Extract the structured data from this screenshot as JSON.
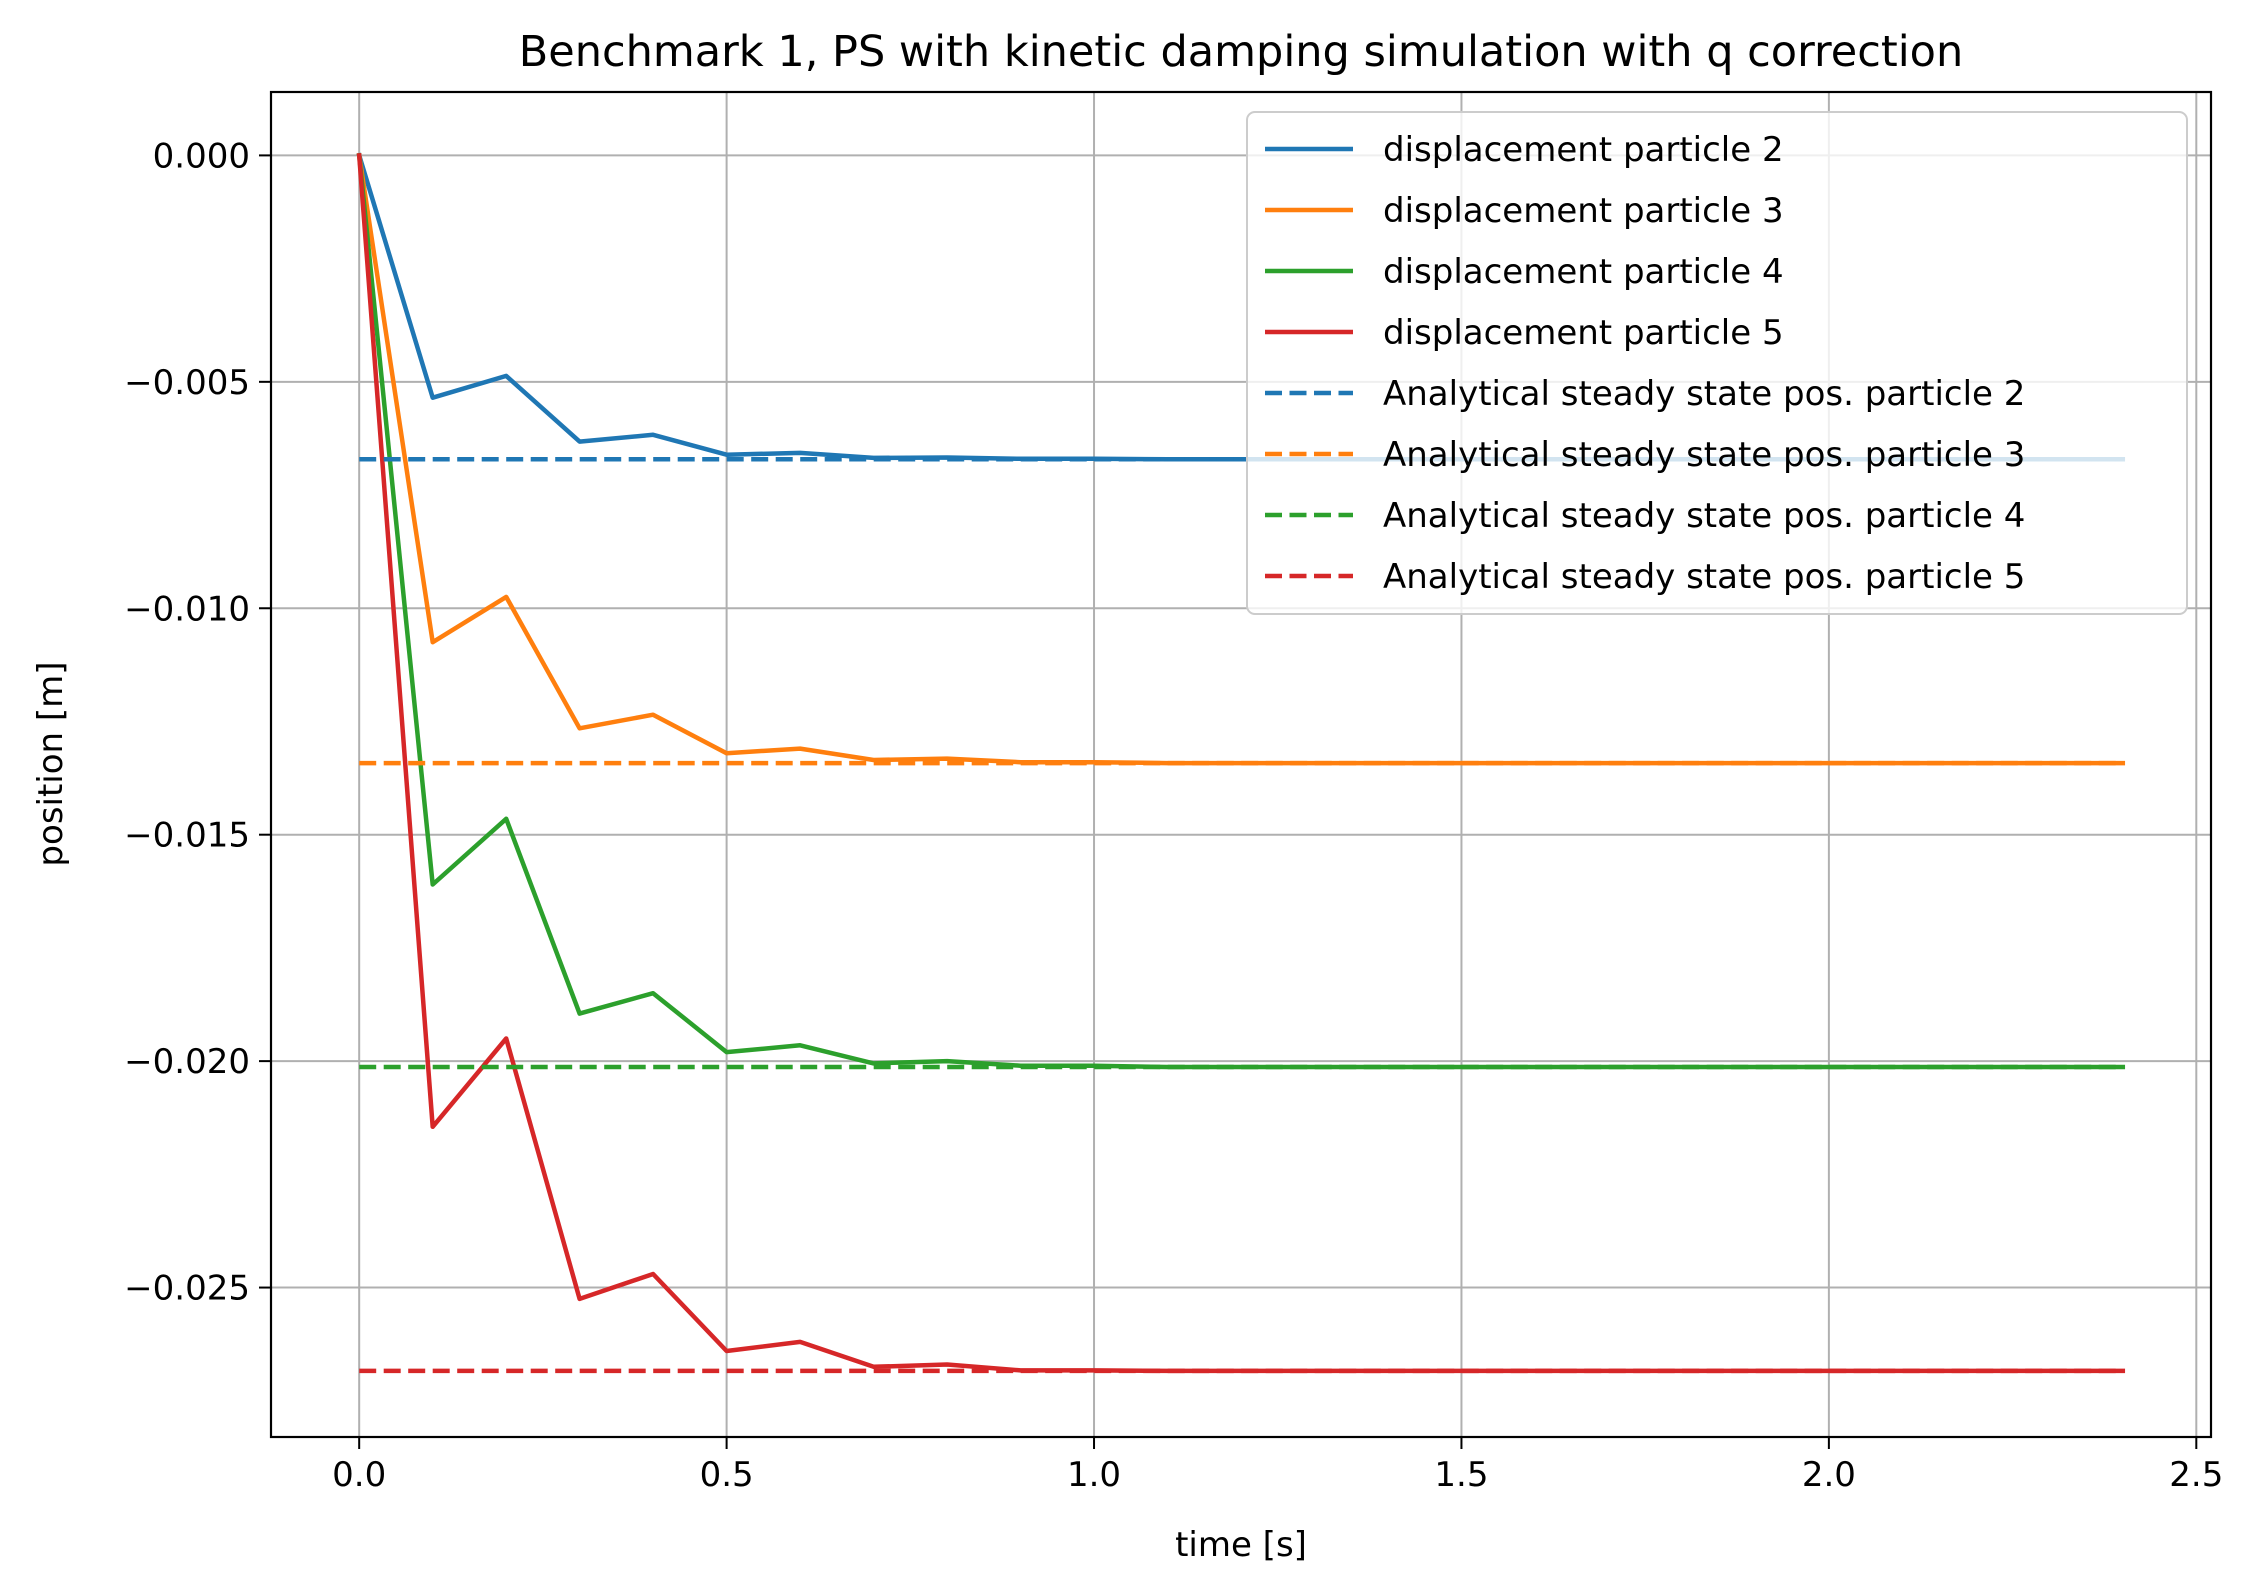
{
  "chart_data": {
    "type": "line",
    "title": "Benchmark 1, PS with kinetic damping simulation with q correction",
    "xlabel": "time [s]",
    "ylabel": "position [m]",
    "xlim": [
      -0.12,
      2.52
    ],
    "ylim": [
      -0.0283,
      0.0014
    ],
    "xticks": [
      0.0,
      0.5,
      1.0,
      1.5,
      2.0,
      2.5
    ],
    "xtick_labels": [
      "0.0",
      "0.5",
      "1.0",
      "1.5",
      "2.0",
      "2.5"
    ],
    "yticks": [
      0.0,
      -0.005,
      -0.01,
      -0.015,
      -0.02,
      -0.025
    ],
    "ytick_labels": [
      "0.000",
      "−0.005",
      "−0.010",
      "−0.015",
      "−0.020",
      "−0.025"
    ],
    "grid": true,
    "legend_position": "top-right",
    "x": [
      0.0,
      0.1,
      0.2,
      0.3,
      0.4,
      0.5,
      0.6,
      0.7,
      0.8,
      0.9,
      1.0,
      1.1,
      1.2,
      1.3,
      1.4,
      1.5,
      1.6,
      1.7,
      1.8,
      1.9,
      2.0,
      2.1,
      2.2,
      2.3,
      2.4
    ],
    "series": [
      {
        "name": "displacement particle 2",
        "color": "#1f77b4",
        "dash": "solid",
        "values": [
          0.0,
          -0.00535,
          -0.00487,
          -0.00632,
          -0.00617,
          -0.00661,
          -0.00657,
          -0.00668,
          -0.00667,
          -0.0067,
          -0.0067,
          -0.00671,
          -0.00671,
          -0.00671,
          -0.00671,
          -0.00671,
          -0.00671,
          -0.00671,
          -0.00671,
          -0.00671,
          -0.00671,
          -0.00671,
          -0.00671,
          -0.00671,
          -0.00671
        ]
      },
      {
        "name": "displacement particle 3",
        "color": "#ff7f0e",
        "dash": "solid",
        "values": [
          0.0,
          -0.01075,
          -0.00975,
          -0.01265,
          -0.01235,
          -0.0132,
          -0.0131,
          -0.01335,
          -0.01332,
          -0.0134,
          -0.0134,
          -0.01342,
          -0.01342,
          -0.01342,
          -0.01342,
          -0.01342,
          -0.01342,
          -0.01342,
          -0.01342,
          -0.01342,
          -0.01342,
          -0.01342,
          -0.01342,
          -0.01342,
          -0.01342
        ]
      },
      {
        "name": "displacement particle 4",
        "color": "#2ca02c",
        "dash": "solid",
        "values": [
          0.0,
          -0.0161,
          -0.01465,
          -0.01895,
          -0.0185,
          -0.0198,
          -0.01965,
          -0.02005,
          -0.02,
          -0.0201,
          -0.0201,
          -0.02013,
          -0.02013,
          -0.02013,
          -0.02013,
          -0.02013,
          -0.02013,
          -0.02013,
          -0.02013,
          -0.02013,
          -0.02013,
          -0.02013,
          -0.02013,
          -0.02013,
          -0.02013
        ]
      },
      {
        "name": "displacement particle 5",
        "color": "#d62728",
        "dash": "solid",
        "values": [
          0.0,
          -0.02145,
          -0.0195,
          -0.02525,
          -0.0247,
          -0.0264,
          -0.0262,
          -0.02675,
          -0.0267,
          -0.02683,
          -0.02683,
          -0.02684,
          -0.02684,
          -0.02684,
          -0.02684,
          -0.02684,
          -0.02684,
          -0.02684,
          -0.02684,
          -0.02684,
          -0.02684,
          -0.02684,
          -0.02684,
          -0.02684,
          -0.02684
        ]
      },
      {
        "name": "Analytical steady state pos. particle 2",
        "color": "#1f77b4",
        "dash": "dashed",
        "x": [
          0.0,
          2.4
        ],
        "values": [
          -0.00671,
          -0.00671
        ]
      },
      {
        "name": "Analytical steady state pos. particle 3",
        "color": "#ff7f0e",
        "dash": "dashed",
        "x": [
          0.0,
          2.4
        ],
        "values": [
          -0.01342,
          -0.01342
        ]
      },
      {
        "name": "Analytical steady state pos. particle 4",
        "color": "#2ca02c",
        "dash": "dashed",
        "x": [
          0.0,
          2.4
        ],
        "values": [
          -0.02013,
          -0.02013
        ]
      },
      {
        "name": "Analytical steady state pos. particle 5",
        "color": "#d62728",
        "dash": "dashed",
        "x": [
          0.0,
          2.4
        ],
        "values": [
          -0.02684,
          -0.02684
        ]
      }
    ]
  }
}
